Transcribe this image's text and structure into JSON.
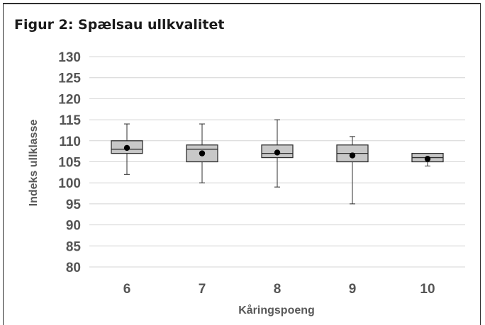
{
  "title": "Figur 2: Spælsau ullkvalitet",
  "chart_data": {
    "type": "boxplot",
    "title": "Figur 2: Spælsau ullkvalitet",
    "xlabel": "Kåringspoeng",
    "ylabel": "Indeks ullklasse",
    "ylim": [
      80,
      130
    ],
    "yticks": [
      80,
      85,
      90,
      95,
      100,
      105,
      110,
      115,
      120,
      125,
      130
    ],
    "grid": true,
    "categories": [
      "6",
      "7",
      "8",
      "9",
      "10"
    ],
    "boxes": [
      {
        "category": "6",
        "min": 102,
        "q1": 107,
        "median": 108,
        "q3": 110,
        "max": 114,
        "mean": 108.3
      },
      {
        "category": "7",
        "min": 100,
        "q1": 105,
        "median": 108,
        "q3": 109,
        "max": 114,
        "mean": 107
      },
      {
        "category": "8",
        "min": 99,
        "q1": 106,
        "median": 107,
        "q3": 109,
        "max": 115,
        "mean": 107.2
      },
      {
        "category": "9",
        "min": 95,
        "q1": 105,
        "median": 107,
        "q3": 109,
        "max": 111,
        "mean": 106.5
      },
      {
        "category": "10",
        "min": 104,
        "q1": 105,
        "median": 106,
        "q3": 107,
        "max": 107,
        "mean": 105.7
      }
    ],
    "colors": {
      "box_fill": "#c8c8c8",
      "stroke": "#2f2f2f",
      "grid": "#d4d4d4",
      "mean_marker": "#000000"
    }
  }
}
